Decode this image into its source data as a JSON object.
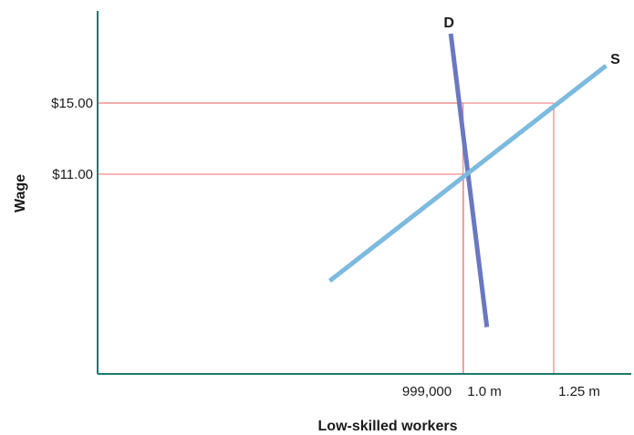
{
  "chart_data": {
    "type": "line",
    "title": "",
    "xlabel": "Low-skilled workers",
    "ylabel": "Wage",
    "grid": false,
    "legend": "none",
    "colors": {
      "axis": "#1f7a6b",
      "guide": "#f08c8c",
      "demand": "#6a78c2",
      "supply": "#7cbadf"
    },
    "x_ticks": [
      {
        "label": "999,000",
        "value": 999000
      },
      {
        "label": "1.0 m",
        "value": 1000000
      },
      {
        "label": "1.25 m",
        "value": 1250000
      }
    ],
    "y_ticks": [
      {
        "label": "$15.00",
        "value": 15
      },
      {
        "label": "$11.00",
        "value": 11
      }
    ],
    "series": [
      {
        "name": "D",
        "points": [
          {
            "x": 965000,
            "y": 18.9
          },
          {
            "x": 1065000,
            "y": 2.4
          }
        ]
      },
      {
        "name": "S",
        "points": [
          {
            "x": 630000,
            "y": 5.0
          },
          {
            "x": 1395000,
            "y": 17.1
          }
        ]
      }
    ],
    "guides": [
      {
        "x": 999000,
        "y": 15
      },
      {
        "x": 1000000,
        "y": 11
      },
      {
        "x": 1250000,
        "y": 15
      }
    ]
  }
}
